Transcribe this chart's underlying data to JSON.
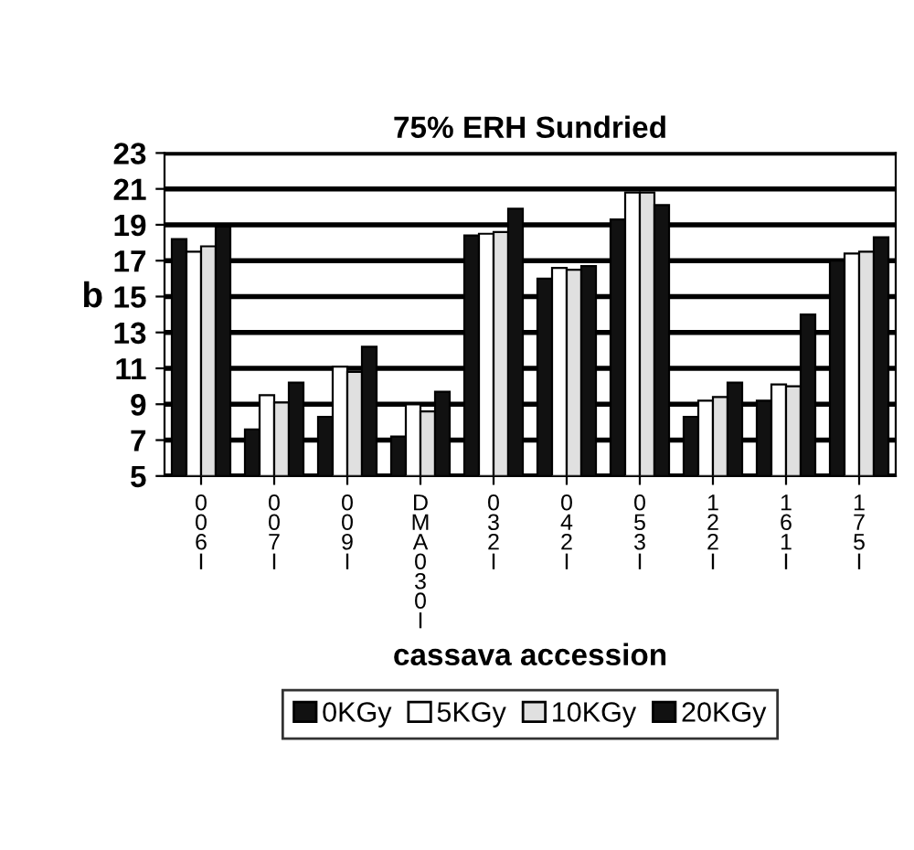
{
  "chart_data": {
    "type": "bar",
    "title": "75% ERH Sundried",
    "xlabel": "cassava accession",
    "ylabel": "b",
    "categories": [
      "006I",
      "007I",
      "009I",
      "DMA030I",
      "032I",
      "042I",
      "053I",
      "122I",
      "161I",
      "175I"
    ],
    "series": [
      {
        "name": "0KGy",
        "color": "#111111",
        "values": [
          18.2,
          7.6,
          8.3,
          7.2,
          18.4,
          16.0,
          19.3,
          8.3,
          9.2,
          17.0
        ]
      },
      {
        "name": "5KGy",
        "color": "#ffffff",
        "values": [
          17.5,
          9.5,
          11.1,
          9.0,
          18.5,
          16.6,
          20.8,
          9.2,
          10.1,
          17.4
        ]
      },
      {
        "name": "10KGy",
        "color": "#e0e0e0",
        "values": [
          17.8,
          9.1,
          10.8,
          8.6,
          18.6,
          16.5,
          20.8,
          9.4,
          10.0,
          17.5
        ]
      },
      {
        "name": "20KGy",
        "color": "#111111",
        "values": [
          18.9,
          10.2,
          12.2,
          9.7,
          19.9,
          16.7,
          20.1,
          10.2,
          14.0,
          18.3
        ]
      }
    ],
    "ylim": [
      5,
      23
    ],
    "yticks": [
      5,
      7,
      9,
      11,
      13,
      15,
      17,
      19,
      21,
      23
    ],
    "grid": "y",
    "legend": "bottom"
  }
}
